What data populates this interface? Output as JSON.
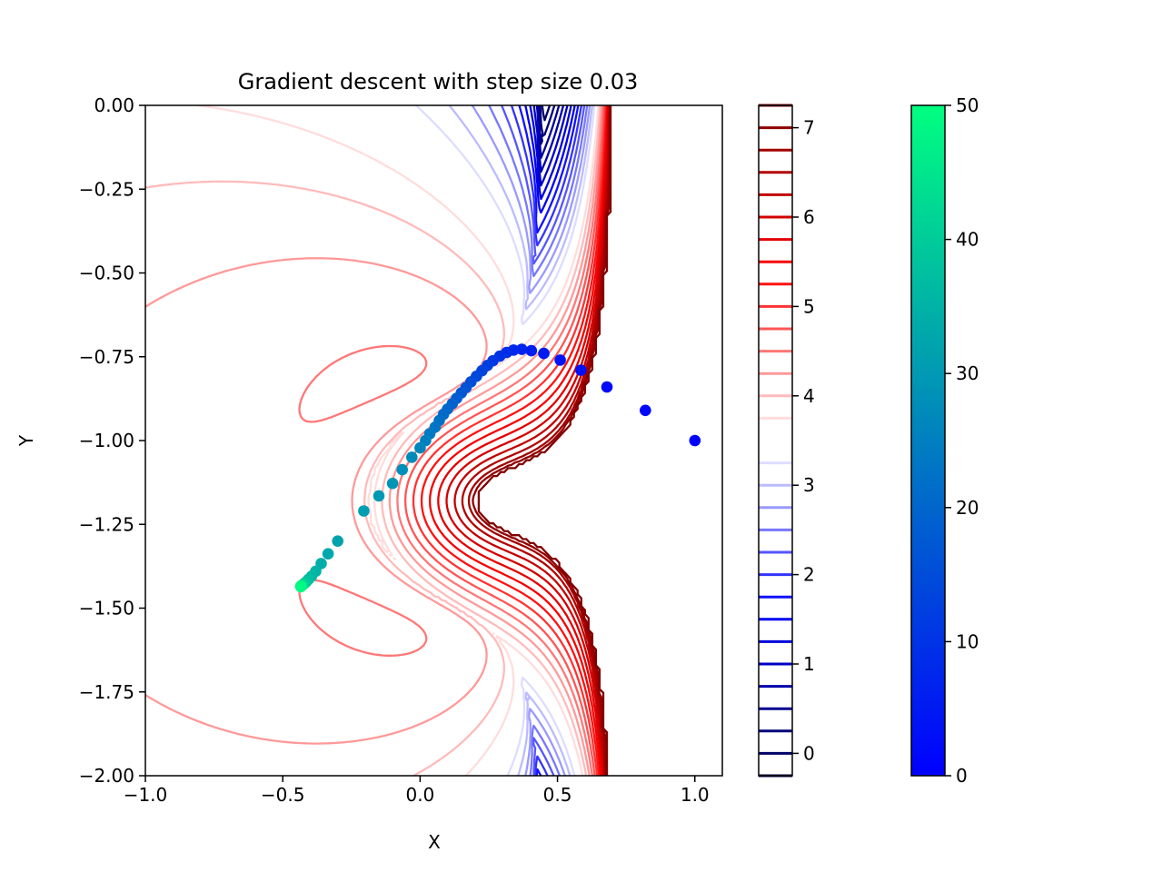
{
  "chart_data": {
    "type": "contour",
    "title": "Gradient descent with step size 0.03",
    "xlabel": "X",
    "ylabel": "Y",
    "xlim": [
      -1.0,
      1.1
    ],
    "ylim": [
      -2.0,
      0.0
    ],
    "xticks": [
      -1.0,
      -0.5,
      0.0,
      0.5,
      1.0
    ],
    "xtick_labels": [
      "−1.0",
      "−0.5",
      "0.0",
      "0.5",
      "1.0"
    ],
    "yticks": [
      0.0,
      -0.25,
      -0.5,
      -0.75,
      -1.0,
      -1.25,
      -1.5,
      -1.75,
      -2.0
    ],
    "ytick_labels": [
      "0.00",
      "−0.25",
      "−0.50",
      "−0.75",
      "−1.00",
      "−1.25",
      "−1.50",
      "−1.75",
      "−2.00"
    ],
    "grid": false,
    "contour": {
      "colormap": "seismic",
      "levels": [
        -0.25,
        0.0,
        0.25,
        0.5,
        0.75,
        1.0,
        1.25,
        1.5,
        1.75,
        2.0,
        2.25,
        2.5,
        2.75,
        3.0,
        3.25,
        3.5,
        3.75,
        4.0,
        4.25,
        4.5,
        4.75,
        5.0,
        5.25,
        5.5,
        5.75,
        6.0,
        6.25,
        6.5,
        6.75,
        7.0,
        7.25
      ],
      "colorbar_ticks": [
        0,
        1,
        2,
        3,
        4,
        5,
        6,
        7
      ],
      "colorbar_range": [
        -0.25,
        7.25
      ],
      "minimum": {
        "x": -0.43,
        "y": -1.43
      }
    },
    "path": {
      "name": "",
      "colormap": "winter",
      "colorbar_ticks": [
        0,
        10,
        20,
        30,
        40,
        50
      ],
      "colorbar_range": [
        0,
        50
      ],
      "points": [
        {
          "x": 1.0,
          "y": -1.0
        },
        {
          "x": 0.82,
          "y": -0.91
        },
        {
          "x": 0.68,
          "y": -0.84
        },
        {
          "x": 0.585,
          "y": -0.79
        },
        {
          "x": 0.51,
          "y": -0.76
        },
        {
          "x": 0.45,
          "y": -0.74
        },
        {
          "x": 0.405,
          "y": -0.732
        },
        {
          "x": 0.37,
          "y": -0.728
        },
        {
          "x": 0.34,
          "y": -0.73
        },
        {
          "x": 0.315,
          "y": -0.737
        },
        {
          "x": 0.29,
          "y": -0.748
        },
        {
          "x": 0.265,
          "y": -0.762
        },
        {
          "x": 0.245,
          "y": -0.776
        },
        {
          "x": 0.225,
          "y": -0.792
        },
        {
          "x": 0.205,
          "y": -0.808
        },
        {
          "x": 0.185,
          "y": -0.825
        },
        {
          "x": 0.167,
          "y": -0.842
        },
        {
          "x": 0.15,
          "y": -0.858
        },
        {
          "x": 0.133,
          "y": -0.874
        },
        {
          "x": 0.117,
          "y": -0.89
        },
        {
          "x": 0.1,
          "y": -0.906
        },
        {
          "x": 0.085,
          "y": -0.922
        },
        {
          "x": 0.07,
          "y": -0.94
        },
        {
          "x": 0.055,
          "y": -0.96
        },
        {
          "x": 0.035,
          "y": -0.98
        },
        {
          "x": 0.02,
          "y": -1.0
        },
        {
          "x": 0.0,
          "y": -1.022
        },
        {
          "x": -0.03,
          "y": -1.05
        },
        {
          "x": -0.065,
          "y": -1.087
        },
        {
          "x": -0.1,
          "y": -1.128
        },
        {
          "x": -0.15,
          "y": -1.165
        },
        {
          "x": -0.205,
          "y": -1.21
        },
        {
          "x": -0.3,
          "y": -1.3
        },
        {
          "x": -0.335,
          "y": -1.338
        },
        {
          "x": -0.36,
          "y": -1.367
        },
        {
          "x": -0.38,
          "y": -1.39
        },
        {
          "x": -0.395,
          "y": -1.405
        },
        {
          "x": -0.407,
          "y": -1.415
        },
        {
          "x": -0.415,
          "y": -1.422
        },
        {
          "x": -0.421,
          "y": -1.426
        },
        {
          "x": -0.425,
          "y": -1.429
        },
        {
          "x": -0.428,
          "y": -1.431
        },
        {
          "x": -0.43,
          "y": -1.432
        },
        {
          "x": -0.431,
          "y": -1.433
        },
        {
          "x": -0.432,
          "y": -1.434
        },
        {
          "x": -0.433,
          "y": -1.434
        },
        {
          "x": -0.433,
          "y": -1.435
        },
        {
          "x": -0.434,
          "y": -1.435
        },
        {
          "x": -0.434,
          "y": -1.435
        },
        {
          "x": -0.434,
          "y": -1.436
        }
      ]
    }
  }
}
